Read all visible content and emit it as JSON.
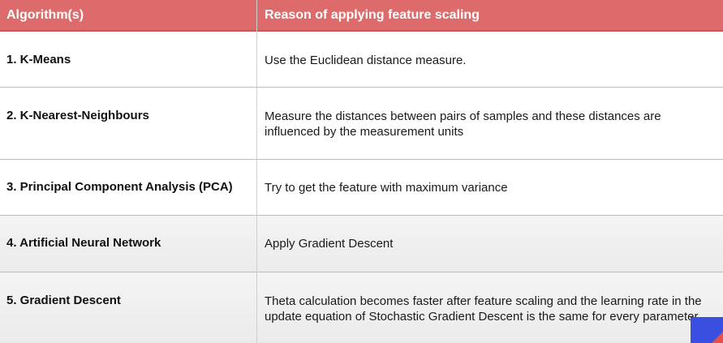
{
  "header": {
    "col1": "Algorithm(s)",
    "col2": "Reason of applying feature scaling"
  },
  "rows": [
    {
      "algorithm": "1. K-Means",
      "reason": "Use the Euclidean distance measure."
    },
    {
      "algorithm": "2. K-Nearest-Neighbours",
      "reason": "Measure the distances between pairs of samples and these distances are influenced by the measurement units"
    },
    {
      "algorithm": "3. Principal Component Analysis (PCA)",
      "reason": "Try to get the feature with maximum variance"
    },
    {
      "algorithm": "4. Artificial Neural Network",
      "reason": "Apply Gradient Descent"
    },
    {
      "algorithm": "5. Gradient Descent",
      "reason": "Theta calculation becomes faster after feature scaling and the learning rate in the update equation of Stochastic Gradient Descent is the same for every parameter"
    }
  ],
  "colors": {
    "header_bg": "#de6b6b",
    "header_text": "#ffffff",
    "row_border": "#bdbdbd"
  },
  "icons": {
    "corner": "overlay-logo-icon"
  }
}
